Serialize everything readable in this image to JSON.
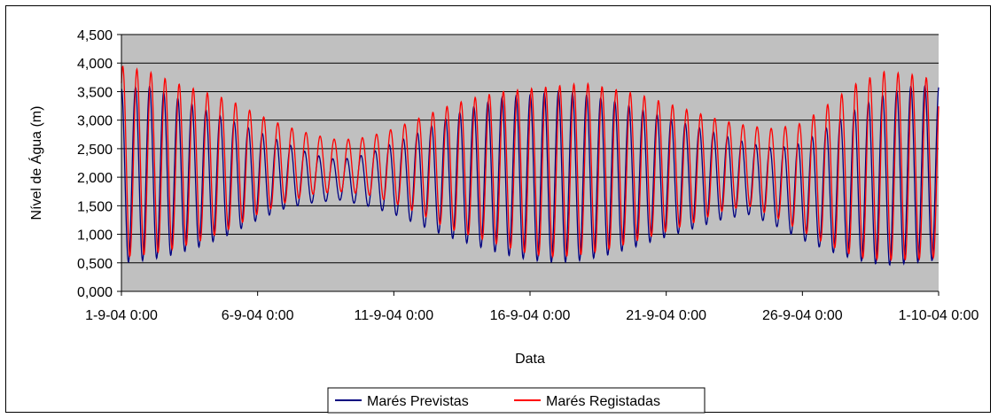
{
  "chart_data": {
    "type": "line",
    "xlabel": "Data",
    "ylabel": "Nível de Água (m)",
    "ylim": [
      0,
      4.5
    ],
    "yticks": [
      "0,000",
      "0,500",
      "1,000",
      "1,500",
      "2,000",
      "2,500",
      "3,000",
      "3,500",
      "4,000",
      "4,500"
    ],
    "xlim": [
      "2004-09-01 00:00",
      "2004-10-01 00:00"
    ],
    "xticks": [
      "1-9-04 0:00",
      "6-9-04 0:00",
      "11-9-04 0:00",
      "16-9-04 0:00",
      "21-9-04 0:00",
      "26-9-04 0:00",
      "1-10-04 0:00"
    ],
    "grid": true,
    "legend_position": "bottom",
    "plot_background": "#c0c0c0",
    "series": [
      {
        "name": "Marés Previstas",
        "color": "#000080",
        "sampling": "daily tidal envelope (high / low water)",
        "x": [
          "2004-09-01",
          "2004-09-02",
          "2004-09-03",
          "2004-09-04",
          "2004-09-05",
          "2004-09-06",
          "2004-09-07",
          "2004-09-08",
          "2004-09-09",
          "2004-09-10",
          "2004-09-11",
          "2004-09-12",
          "2004-09-13",
          "2004-09-14",
          "2004-09-15",
          "2004-09-16",
          "2004-09-17",
          "2004-09-18",
          "2004-09-19",
          "2004-09-20",
          "2004-09-21",
          "2004-09-22",
          "2004-09-23",
          "2004-09-24",
          "2004-09-25",
          "2004-09-26",
          "2004-09-27",
          "2004-09-28",
          "2004-09-29",
          "2004-09-30",
          "2004-10-01"
        ],
        "high": [
          3.55,
          3.6,
          3.4,
          3.2,
          3.0,
          2.8,
          2.6,
          2.4,
          2.3,
          2.4,
          2.6,
          2.8,
          3.05,
          3.25,
          3.4,
          3.45,
          3.5,
          3.45,
          3.35,
          3.2,
          3.05,
          2.9,
          2.75,
          2.6,
          2.5,
          2.6,
          2.9,
          3.2,
          3.45,
          3.6,
          3.6
        ],
        "low": [
          0.5,
          0.55,
          0.65,
          0.8,
          1.0,
          1.25,
          1.45,
          1.55,
          1.6,
          1.5,
          1.35,
          1.15,
          0.95,
          0.8,
          0.65,
          0.55,
          0.5,
          0.55,
          0.65,
          0.8,
          0.95,
          1.1,
          1.25,
          1.35,
          1.15,
          0.9,
          0.7,
          0.55,
          0.45,
          0.5,
          0.55
        ]
      },
      {
        "name": "Marés Registadas",
        "color": "#ff0000",
        "sampling": "daily tidal envelope (high / low water)",
        "x": [
          "2004-09-01",
          "2004-09-02",
          "2004-09-03",
          "2004-09-04",
          "2004-09-05",
          "2004-09-06",
          "2004-09-07",
          "2004-09-08",
          "2004-09-09",
          "2004-09-10",
          "2004-09-11",
          "2004-09-12",
          "2004-09-13",
          "2004-09-14",
          "2004-09-15",
          "2004-09-16",
          "2004-09-17",
          "2004-09-18",
          "2004-09-19",
          "2004-09-20",
          "2004-09-21",
          "2004-09-22",
          "2004-09-23",
          "2004-09-24",
          "2004-09-25",
          "2004-09-26",
          "2004-09-27",
          "2004-09-28",
          "2004-09-29",
          "2004-09-30",
          "2004-10-01"
        ],
        "high": [
          3.95,
          3.85,
          3.65,
          3.5,
          3.35,
          3.1,
          2.9,
          2.75,
          2.65,
          2.7,
          2.85,
          3.05,
          3.25,
          3.4,
          3.5,
          3.55,
          3.6,
          3.65,
          3.55,
          3.45,
          3.3,
          3.15,
          3.0,
          2.9,
          2.85,
          2.95,
          3.3,
          3.65,
          3.85,
          3.8,
          3.7
        ],
        "low": [
          0.6,
          0.65,
          0.75,
          0.9,
          1.1,
          1.35,
          1.55,
          1.7,
          1.75,
          1.7,
          1.55,
          1.35,
          1.1,
          0.95,
          0.8,
          0.65,
          0.6,
          0.65,
          0.75,
          0.9,
          1.05,
          1.2,
          1.4,
          1.5,
          1.3,
          1.05,
          0.8,
          0.6,
          0.55,
          0.55,
          0.6
        ]
      }
    ]
  }
}
